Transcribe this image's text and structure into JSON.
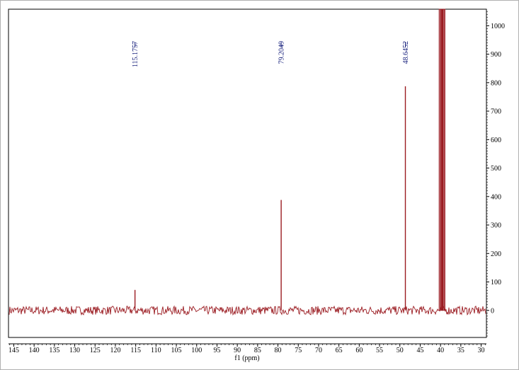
{
  "chart_data": {
    "type": "line",
    "title": "",
    "xlabel": "f1 (ppm)",
    "ylabel": "",
    "xlim": [
      146.3,
      28.7
    ],
    "ylim": [
      -95,
      1058
    ],
    "x_ticks": [
      145,
      140,
      135,
      130,
      125,
      120,
      115,
      110,
      105,
      100,
      95,
      90,
      85,
      80,
      75,
      70,
      65,
      60,
      55,
      50,
      45,
      40,
      35,
      30
    ],
    "y_ticks": [
      0,
      100,
      200,
      300,
      400,
      500,
      600,
      700,
      800,
      900,
      1000
    ],
    "baseline_noise_amplitude": 15,
    "peaks": [
      {
        "x": 115.1757,
        "y": 72,
        "label": "115.1757"
      },
      {
        "x": 79.2049,
        "y": 388,
        "label": "79.2049"
      },
      {
        "x": 48.6452,
        "y": 787,
        "label": "48.6452"
      },
      {
        "x": 40.1,
        "y": 1058,
        "label": ""
      },
      {
        "x": 39.8,
        "y": 1058,
        "label": ""
      },
      {
        "x": 39.6,
        "y": 1058,
        "label": ""
      },
      {
        "x": 39.4,
        "y": 1058,
        "label": ""
      },
      {
        "x": 39.1,
        "y": 1058,
        "label": ""
      }
    ],
    "colors": {
      "spectrum": "#9b1c22",
      "peak_labels": "#1a237e",
      "axes": "#000000"
    }
  }
}
